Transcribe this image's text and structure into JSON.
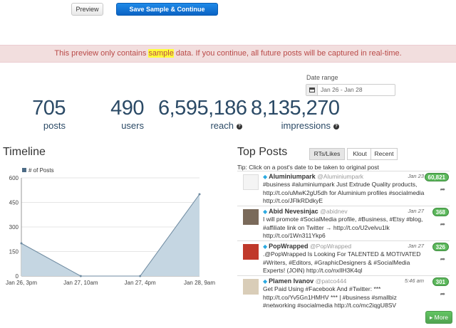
{
  "toolbar": {
    "preview_label": "Preview",
    "save_label": "Save Sample & Continue Tracking"
  },
  "alert": {
    "prefix": "This preview only contains ",
    "highlight": "sample",
    "suffix": " data. If you continue, all future posts will be captured in real-time."
  },
  "date_range": {
    "label": "Date range",
    "value": "Jan 26 - Jan 28"
  },
  "stats": [
    {
      "value": "705",
      "label": "posts"
    },
    {
      "value": "490",
      "label": "users"
    },
    {
      "value": "6,595,186",
      "label": "reach"
    },
    {
      "value": "8,135,270",
      "label": "impressions"
    }
  ],
  "timeline": {
    "title": "Timeline",
    "chart_data": {
      "type": "area",
      "legend": "# of Posts",
      "x": [
        "Jan 26, 3pm",
        "Jan 27, 10am",
        "Jan 27, 4pm",
        "Jan 28, 9am"
      ],
      "y": [
        200,
        0,
        0,
        500
      ],
      "yticks": [
        0,
        150,
        300,
        450,
        600
      ],
      "ylim": [
        0,
        600
      ],
      "color": "#c5d6e2"
    }
  },
  "top_posts": {
    "title": "Top Posts",
    "tabs": [
      "RTs/Likes",
      "Klout",
      "Recent"
    ],
    "active_tab": 0,
    "tip": "Tip: Click on a post's date to be taken to original post",
    "more_label": "More",
    "posts": [
      {
        "name": "Aluminiumpark",
        "handle": "@Aluminiumpark",
        "date": "Jan 23",
        "count": "60,821",
        "text": "#business #aluminiumpark Just Extrude Quality products, http://t.co/uMwK2gU5dh for Aluminium profiles #socialmedia http://t.co/JFlkRDdkyE"
      },
      {
        "name": "Abid Nevesinjac",
        "handle": "@abidnev",
        "date": "Jan 27",
        "count": "368",
        "text": "I will promote #SocialMedia profile, #Business, #Etsy #blog, #affiliate link on Twitter → http://t.co/U2velvu1lk http://t.co/1Wn311Ykp6"
      },
      {
        "name": "PopWrapped",
        "handle": "@PopWrapped",
        "date": "Jan 27",
        "count": "326",
        "text": ".@PopWrapped Is Looking For TALENTED & MOTIVATED #Writers, #Editors, #GraphicDesigners & #SocialMedia Experts! (JOIN) http://t.co/nxlIH3K4ql"
      },
      {
        "name": "Plamen Ivanov",
        "handle": "@patco444",
        "date": "5:46 am",
        "count": "301",
        "text": "Get Paid Using #Facebook And #Twitter: *** http://t.co/Yv5Gn1HMHV *** | #business #smallbiz #networking #socialmedia http://t.co/mc2iqgU8SV"
      }
    ]
  }
}
